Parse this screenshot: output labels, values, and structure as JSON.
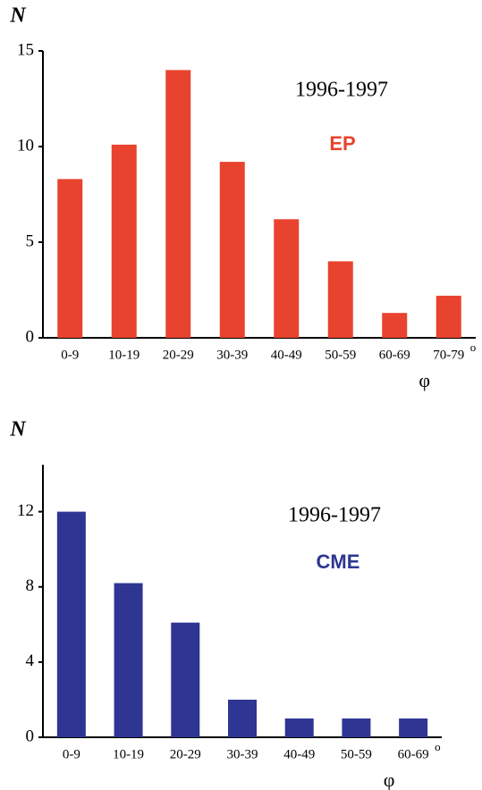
{
  "chart_data": [
    {
      "type": "bar",
      "y_label": "N",
      "x_label": "φ",
      "x_unit": "o",
      "annotation": "1996-1997",
      "series_label": "EP",
      "color": "#e8432e",
      "categories": [
        "0-9",
        "10-19",
        "20-29",
        "30-39",
        "40-49",
        "50-59",
        "60-69",
        "70-79"
      ],
      "values": [
        8.3,
        10.1,
        14,
        9.2,
        6.2,
        4,
        1.3,
        2.2
      ],
      "ylim": [
        0,
        15
      ],
      "yticks": [
        0,
        5,
        10,
        15
      ]
    },
    {
      "type": "bar",
      "y_label": "N",
      "x_label": "φ",
      "x_unit": "o",
      "annotation": "1996-1997",
      "series_label": "CME",
      "color": "#2e3592",
      "categories": [
        "0-9",
        "10-19",
        "20-29",
        "30-39",
        "40-49",
        "50-59",
        "60-69"
      ],
      "values": [
        12,
        8.2,
        6.1,
        2,
        1,
        1,
        1
      ],
      "ylim": [
        0,
        14.5
      ],
      "yticks": [
        0,
        4,
        8,
        12
      ]
    }
  ]
}
